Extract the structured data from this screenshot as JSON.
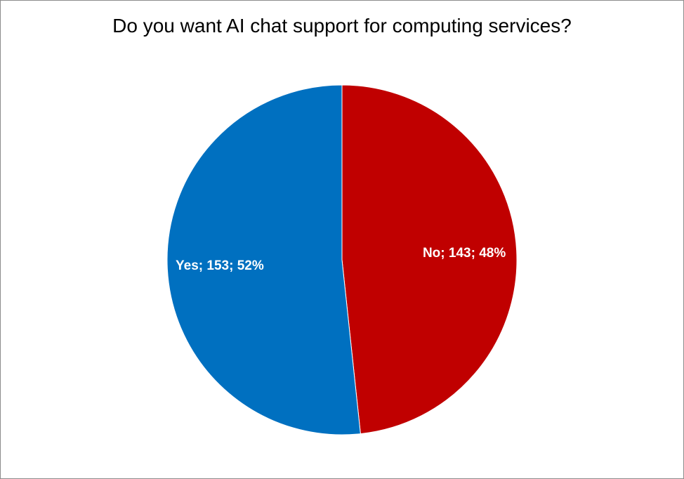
{
  "chart_data": {
    "type": "pie",
    "title": "Do you want AI chat support for computing services?",
    "start_at": "top",
    "direction": "clockwise",
    "slices": [
      {
        "label": "No",
        "value": 143,
        "percent": "48%",
        "color": "#C00000",
        "data_label": "No; 143; 48%"
      },
      {
        "label": "Yes",
        "value": 153,
        "percent": "52%",
        "color": "#0070C0",
        "data_label": "Yes; 153; 52%"
      }
    ],
    "legend": "none",
    "border_color": "#8C8C8C"
  }
}
